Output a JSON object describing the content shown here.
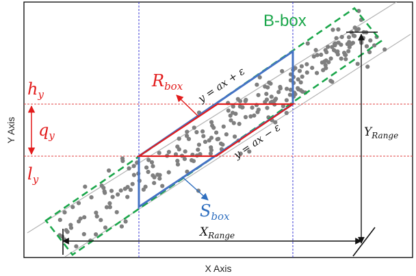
{
  "figure": {
    "x_axis_label": "X Axis",
    "y_axis_label": "Y Axis",
    "bbox_label": "B-box",
    "rbox": {
      "base": "R",
      "sub": "box"
    },
    "sbox": {
      "base": "S",
      "sub": "box"
    },
    "hy": {
      "base": "h",
      "sub": "y"
    },
    "qy": {
      "base": "q",
      "sub": "y"
    },
    "ly": {
      "base": "l",
      "sub": "y"
    },
    "y_range": {
      "base": "Y",
      "sub": "Range"
    },
    "x_range": {
      "base": "X",
      "sub": "Range"
    },
    "eq_upper": "y = ax + ε",
    "eq_lower": "y = ax − ε"
  },
  "colors": {
    "bbox": "#1aa64a",
    "rbox": "#e21b1b",
    "sbox": "#4472c4",
    "points": "#7f7f7f",
    "vertical_guides": "#3b3bd6",
    "horizontal_guides": "#e04040",
    "diagonal": "#b3b3b3",
    "arrows": "#111111"
  }
}
